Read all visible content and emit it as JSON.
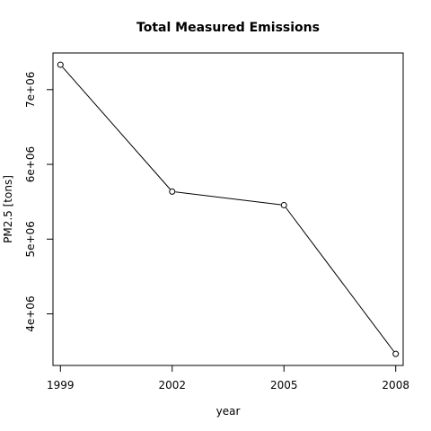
{
  "chart_data": {
    "type": "line",
    "title": "Total Measured Emissions",
    "xlabel": "year",
    "ylabel": "PM2.5 [tons]",
    "x": [
      1999,
      2002,
      2005,
      2008
    ],
    "x_tick_labels": [
      "1999",
      "2002",
      "2005",
      "2008"
    ],
    "y_ticks": [
      4000000,
      5000000,
      6000000,
      7000000
    ],
    "y_tick_labels": [
      "4e+06",
      "5e+06",
      "6e+06",
      "7e+06"
    ],
    "series": [
      {
        "values": [
          7332967,
          5635780,
          5454703,
          3464206
        ],
        "color": "#000000",
        "marker": "open-circle"
      }
    ],
    "xlim": [
      1998.8,
      2008.2
    ],
    "ylim": [
      3310000,
      7490000
    ],
    "grid": false,
    "legend": "none"
  }
}
